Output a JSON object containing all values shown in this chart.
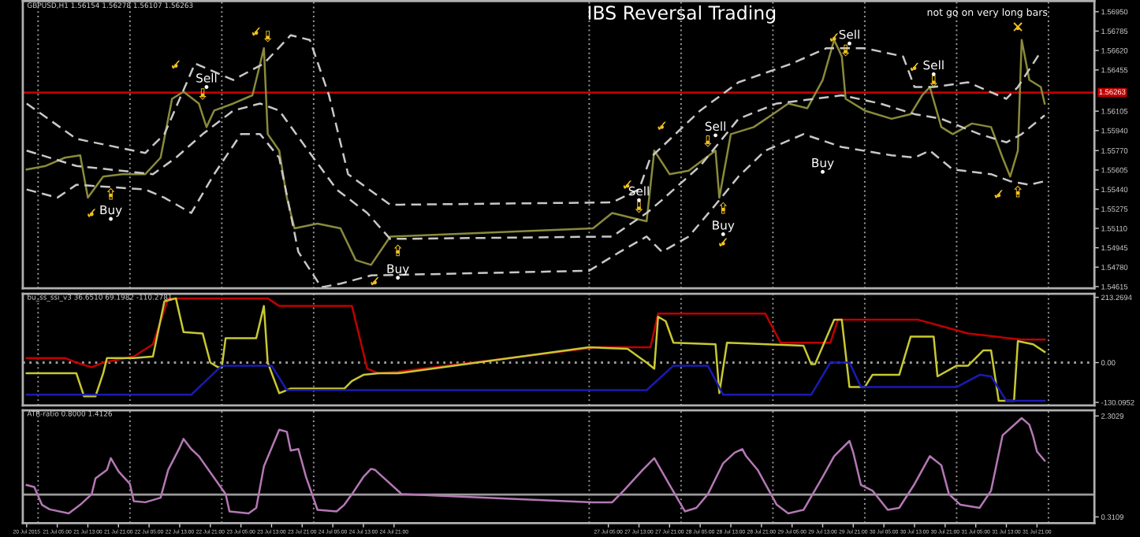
{
  "chart_data": [
    {
      "type": "line",
      "title": "IBS Reversal Trading",
      "subtitle": "GBPUSD,H1 1.56154 1.56278 1.56107 1.56263",
      "tick_labels": "y",
      "xlim": [
        "2015-07-20T20:00",
        "2015-08-01T12:00"
      ],
      "ylim": [
        1.546,
        1.5704
      ],
      "yticks": [
        {
          "value": 1.5695,
          "label": "1.56950"
        },
        1.56785,
        {
          "value": 1.5662,
          "label": "1.56620"
        },
        1.56455,
        1.56105,
        {
          "value": 1.5594,
          "label": "1.55940"
        },
        {
          "value": 1.5577,
          "label": "1.55770"
        },
        1.55605,
        {
          "value": 1.5544,
          "label": "1.55440"
        },
        1.55275,
        {
          "value": 1.5511,
          "label": "1.55110"
        },
        1.54945,
        {
          "value": 1.5478,
          "label": "1.54780"
        },
        1.54615
      ],
      "series": [
        {
          "color": "#8a8a3c",
          "line_style": "solid",
          "x": [
            "2015-07-20T21:00",
            "2015-07-21T02:00",
            "2015-07-21T07:00",
            "2015-07-21T11:00",
            "2015-07-21T13:00",
            "2015-07-21T17:00",
            "2015-07-21T22:00",
            "2015-07-22T04:00",
            "2015-07-22T08:00",
            "2015-07-22T11:00",
            "2015-07-22T14:00",
            "2015-07-22T18:00",
            "2015-07-22T20:00",
            "2015-07-22T22:00",
            "2015-07-23T03:00",
            "2015-07-23T08:00",
            "2015-07-23T11:00",
            "2015-07-23T12:00",
            "2015-07-23T15:00",
            "2015-07-23T17:00",
            "2015-07-23T19:00",
            "2015-07-24T01:00",
            "2015-07-24T07:00",
            "2015-07-24T11:00",
            "2015-07-24T15:00",
            "2015-07-24T20:00",
            "2015-07-27T01:00",
            "2015-07-27T06:00",
            "2015-07-27T11:00",
            "2015-07-27T15:00",
            "2015-07-27T17:00",
            "2015-07-27T21:00",
            "2015-07-28T02:00",
            "2015-07-28T09:00",
            "2015-07-28T10:00",
            "2015-07-28T13:00",
            "2015-07-28T19:00",
            "2015-07-29T00:00",
            "2015-07-29T04:00",
            "2015-07-29T09:00",
            "2015-07-29T13:00",
            "2015-07-29T16:00",
            "2015-07-29T18:00",
            "2015-07-29T19:00",
            "2015-07-30T00:00",
            "2015-07-30T07:00",
            "2015-07-30T12:00",
            "2015-07-30T15:00",
            "2015-07-30T17:00",
            "2015-07-30T20:00",
            "2015-07-30T23:00",
            "2015-07-31T04:00",
            "2015-07-31T09:00",
            "2015-07-31T12:00",
            "2015-07-31T14:00",
            "2015-07-31T16:00",
            "2015-07-31T17:00",
            "2015-07-31T19:00",
            "2015-07-31T22:00",
            "2015-07-31T23:00"
          ],
          "values": [
            1.5561,
            1.5564,
            1.5571,
            1.5573,
            1.5537,
            1.5555,
            1.5557,
            1.5557,
            1.5571,
            1.5621,
            1.5627,
            1.5617,
            1.5597,
            1.5611,
            1.5617,
            1.5624,
            1.5664,
            1.5591,
            1.5577,
            1.5537,
            1.5511,
            1.5515,
            1.5511,
            1.5484,
            1.548,
            1.5504,
            1.5511,
            1.5524,
            1.552,
            1.5517,
            1.5577,
            1.5557,
            1.556,
            1.5577,
            1.5537,
            1.5591,
            1.5597,
            1.5608,
            1.5617,
            1.5613,
            1.5637,
            1.5671,
            1.5657,
            1.5621,
            1.5611,
            1.5604,
            1.5608,
            1.5624,
            1.5631,
            1.5597,
            1.5591,
            1.56,
            1.5597,
            1.5571,
            1.5555,
            1.5577,
            1.5671,
            1.5637,
            1.5631,
            1.5617
          ]
        },
        {
          "color": "#c8c8c8",
          "line_style": "dashed",
          "x": [
            "2015-07-20T21:00",
            "2015-07-21T10:00",
            "2015-07-22T04:00",
            "2015-07-22T09:00",
            "2015-07-22T17:00",
            "2015-07-23T03:00",
            "2015-07-23T11:00",
            "2015-07-23T18:00",
            "2015-07-23T23:00",
            "2015-07-24T04:00",
            "2015-07-24T09:00",
            "2015-07-24T20:00",
            "2015-07-27T06:00",
            "2015-07-27T13:00",
            "2015-07-27T16:00",
            "2015-07-28T05:00",
            "2015-07-28T15:00",
            "2015-07-29T05:00",
            "2015-07-29T14:00",
            "2015-07-30T00:00",
            "2015-07-30T10:00",
            "2015-07-30T13:00",
            "2015-07-30T18:00",
            "2015-07-31T03:00",
            "2015-07-31T13:00",
            "2015-07-31T16:00",
            "2015-07-31T22:00"
          ],
          "values": [
            1.5617,
            1.5587,
            1.5575,
            1.5591,
            1.5651,
            1.5637,
            1.5651,
            1.5675,
            1.5671,
            1.5624,
            1.5557,
            1.5531,
            1.5533,
            1.5544,
            1.5571,
            1.5611,
            1.5635,
            1.5651,
            1.5664,
            1.5664,
            1.5657,
            1.5631,
            1.5631,
            1.5635,
            1.5621,
            1.5631,
            1.5661
          ]
        },
        {
          "color": "#c8c8c8",
          "line_style": "dashed",
          "x": [
            "2015-07-20T21:00",
            "2015-07-21T10:00",
            "2015-07-22T06:00",
            "2015-07-22T12:00",
            "2015-07-22T19:00",
            "2015-07-23T03:00",
            "2015-07-23T10:00",
            "2015-07-23T15:00",
            "2015-07-23T21:00",
            "2015-07-24T06:00",
            "2015-07-24T14:00",
            "2015-07-24T20:00",
            "2015-07-27T06:00",
            "2015-07-27T15:00",
            "2015-07-27T19:00",
            "2015-07-28T05:00",
            "2015-07-28T15:00",
            "2015-07-29T01:00",
            "2015-07-29T11:00",
            "2015-07-29T18:00",
            "2015-07-30T04:00",
            "2015-07-30T13:00",
            "2015-07-30T20:00",
            "2015-07-31T06:00",
            "2015-07-31T13:00",
            "2015-07-31T17:00",
            "2015-07-31T23:00"
          ],
          "values": [
            1.5577,
            1.5564,
            1.5557,
            1.5571,
            1.5591,
            1.5611,
            1.5617,
            1.5611,
            1.5584,
            1.5544,
            1.5524,
            1.5502,
            1.5504,
            1.5524,
            1.5535,
            1.5564,
            1.5604,
            1.5617,
            1.5621,
            1.5624,
            1.5617,
            1.5608,
            1.5604,
            1.5591,
            1.5584,
            1.5591,
            1.5607
          ]
        },
        {
          "color": "#c8c8c8",
          "line_style": "dashed",
          "x": [
            "2015-07-20T21:00",
            "2015-07-21T05:00",
            "2015-07-21T10:00",
            "2015-07-22T04:00",
            "2015-07-22T09:00",
            "2015-07-22T16:00",
            "2015-07-22T22:00",
            "2015-07-23T05:00",
            "2015-07-23T10:00",
            "2015-07-23T15:00",
            "2015-07-23T20:00",
            "2015-07-24T02:00",
            "2015-07-24T07:00",
            "2015-07-24T15:00",
            "2015-07-27T00:00",
            "2015-07-27T08:00",
            "2015-07-27T15:00",
            "2015-07-27T19:00",
            "2015-07-28T02:00",
            "2015-07-28T09:00",
            "2015-07-28T15:00",
            "2015-07-28T22:00",
            "2015-07-29T08:00",
            "2015-07-29T18:00",
            "2015-07-30T07:00",
            "2015-07-30T13:00",
            "2015-07-30T17:00",
            "2015-07-30T23:00",
            "2015-07-31T09:00",
            "2015-07-31T14:00",
            "2015-07-31T19:00",
            "2015-07-31T23:00"
          ],
          "values": [
            1.5544,
            1.5537,
            1.5548,
            1.5544,
            1.5537,
            1.5524,
            1.5557,
            1.5591,
            1.5591,
            1.5571,
            1.5491,
            1.5461,
            1.5464,
            1.5471,
            1.5475,
            1.5491,
            1.5504,
            1.5491,
            1.5504,
            1.5531,
            1.5555,
            1.5577,
            1.5591,
            1.558,
            1.5573,
            1.5571,
            1.5577,
            1.5561,
            1.5557,
            1.5551,
            1.5548,
            1.5551
          ]
        },
        {
          "type": "scatter",
          "marker": "circle",
          "color": "#ffffff",
          "x": [
            "2015-07-21T19:00",
            "2015-07-24T22:00",
            "2015-07-28T11:00",
            "2015-07-29T13:00"
          ],
          "values": [
            1.5519,
            1.5469,
            1.5506,
            1.5559
          ],
          "value_labels": [
            "Buy",
            "Buy",
            "Buy",
            "Buy"
          ]
        },
        {
          "type": "scatter",
          "marker": "circle",
          "color": "#ffffff",
          "x": [
            "2015-07-22T20:00",
            "2015-07-27T13:00",
            "2015-07-28T09:00",
            "2015-07-29T20:00",
            "2015-07-30T18:00"
          ],
          "values": [
            1.5631,
            1.5535,
            1.559,
            1.5668,
            1.5642
          ],
          "value_labels": [
            "Sell",
            "Sell",
            "Sell",
            "Sell",
            "Sell"
          ]
        },
        {
          "type": "scatter",
          "marker": "circle",
          "color": "#f0c020",
          "x": [
            "2015-07-21T19:00",
            "2015-07-24T22:00",
            "2015-07-28T11:00",
            "2015-07-31T16:00"
          ],
          "values": [
            1.5539,
            1.5491,
            1.5527,
            1.5541
          ],
          "value_labels": [
            "⇧",
            "⇧",
            "⇧",
            "⇧"
          ]
        },
        {
          "type": "scatter",
          "marker": "circle",
          "color": "#f0c020",
          "x": [
            "2015-07-22T19:00",
            "2015-07-23T12:00",
            "2015-07-27T13:00",
            "2015-07-28T07:00",
            "2015-07-29T19:00",
            "2015-07-30T18:00"
          ],
          "values": [
            1.5624,
            1.5673,
            1.5528,
            1.5584,
            1.5661,
            1.5635
          ],
          "value_labels": [
            "⇩",
            "⇩",
            "⇩",
            "⇩",
            "⇩",
            "⇩"
          ]
        },
        {
          "type": "scatter",
          "marker": "circle",
          "color": "#f0c020",
          "x": [
            "2015-07-21T14:00",
            "2015-07-22T12:00",
            "2015-07-23T09:00",
            "2015-07-24T16:00",
            "2015-07-27T10:00",
            "2015-07-27T19:00",
            "2015-07-28T11:00",
            "2015-07-29T16:00",
            "2015-07-30T13:00",
            "2015-07-31T11:00"
          ],
          "values": [
            1.5523,
            1.5649,
            1.5677,
            1.5465,
            1.5547,
            1.5597,
            1.5498,
            1.5672,
            1.5647,
            1.5539
          ],
          "value_labels": [
            "✓",
            "✓",
            "✓",
            "✓",
            "✓",
            "✓",
            "✓",
            "✓",
            "✓",
            "✓"
          ]
        },
        {
          "type": "scatter",
          "marker": "circle",
          "color": "#f0c020",
          "x": [
            "2015-07-31T16:00"
          ],
          "values": [
            1.5681
          ],
          "value_labels": [
            "✕"
          ]
        }
      ],
      "ref_lines": [
        {
          "axis": "y",
          "value": 1.56263,
          "label": "1.56263",
          "color": "#c00000",
          "line_style": "solid"
        },
        {
          "axis": "x",
          "value": "2015-07-21T00:00",
          "color": "#9a9a9a",
          "line_style": "dotted"
        },
        {
          "axis": "x",
          "value": "2015-07-22T00:00",
          "color": "#9a9a9a",
          "line_style": "dotted"
        },
        {
          "axis": "x",
          "value": "2015-07-23T00:00",
          "color": "#9a9a9a",
          "line_style": "dotted"
        },
        {
          "axis": "x",
          "value": "2015-07-24T00:00",
          "color": "#9a9a9a",
          "line_style": "dotted"
        },
        {
          "axis": "x",
          "value": "2015-07-27T00:00",
          "color": "#9a9a9a",
          "line_style": "dotted"
        },
        {
          "axis": "x",
          "value": "2015-07-28T00:00",
          "color": "#9a9a9a",
          "line_style": "dotted"
        },
        {
          "axis": "x",
          "value": "2015-07-29T00:00",
          "color": "#9a9a9a",
          "line_style": "dotted"
        },
        {
          "axis": "x",
          "value": "2015-07-30T00:00",
          "color": "#9a9a9a",
          "line_style": "dotted"
        },
        {
          "axis": "x",
          "value": "2015-07-31T00:00",
          "color": "#9a9a9a",
          "line_style": "dotted"
        },
        {
          "axis": "x",
          "value": "2015-08-01T00:00",
          "color": "#9a9a9a",
          "line_style": "dotted"
        }
      ],
      "annotations": [
        "not go on very long bars"
      ]
    },
    {
      "type": "line",
      "subtitle": "bu_ss_ssi_v3 36.6510 69.1982 -110.2781",
      "tick_labels": "y",
      "xlim": [
        "2015-07-20T20:00",
        "2015-08-01T12:00"
      ],
      "ylim": [
        -140,
        225
      ],
      "yticks": [
        213.2694,
        {
          "value": 0,
          "label": "0.00"
        },
        -130.0952
      ],
      "series": [
        {
          "color": "#c00000",
          "line_style": "solid",
          "x": [
            "2015-07-20T21:00",
            "2015-07-21T07:00",
            "2015-07-21T10:00",
            "2015-07-21T14:00",
            "2015-07-21T17:00",
            "2015-07-22T01:00",
            "2015-07-22T06:00",
            "2015-07-22T10:00",
            "2015-07-23T12:00",
            "2015-07-23T15:00",
            "2015-07-24T10:00",
            "2015-07-24T14:00",
            "2015-07-24T17:00",
            "2015-07-24T22:00",
            "2015-07-27T02:00",
            "2015-07-27T16:00",
            "2015-07-27T18:00",
            "2015-07-28T22:00",
            "2015-07-29T02:00",
            "2015-07-29T15:00",
            "2015-07-29T17:00",
            "2015-07-30T14:00",
            "2015-07-31T03:00",
            "2015-07-31T17:00",
            "2015-07-31T23:00"
          ],
          "values": [
            15,
            15,
            0,
            -15,
            0,
            20,
            60,
            210,
            210,
            185,
            185,
            -20,
            -35,
            -30,
            50,
            50,
            160,
            160,
            65,
            65,
            140,
            140,
            95,
            75,
            75
          ]
        },
        {
          "color": "#c8c832",
          "line_style": "solid",
          "x": [
            "2015-07-20T21:00",
            "2015-07-21T10:00",
            "2015-07-21T12:00",
            "2015-07-21T15:00",
            "2015-07-21T17:00",
            "2015-07-21T18:00",
            "2015-07-22T01:00",
            "2015-07-22T06:00",
            "2015-07-22T09:00",
            "2015-07-22T12:00",
            "2015-07-22T14:00",
            "2015-07-22T19:00",
            "2015-07-22T21:00",
            "2015-07-22T23:00",
            "2015-07-23T00:00",
            "2015-07-23T01:00",
            "2015-07-23T09:00",
            "2015-07-23T11:00",
            "2015-07-23T12:00",
            "2015-07-23T15:00",
            "2015-07-23T18:00",
            "2015-07-24T08:00",
            "2015-07-24T10:00",
            "2015-07-24T13:00",
            "2015-07-24T17:00",
            "2015-07-24T22:00",
            "2015-07-27T00:00",
            "2015-07-27T10:00",
            "2015-07-27T15:00",
            "2015-07-27T17:00",
            "2015-07-27T18:00",
            "2015-07-27T20:00",
            "2015-07-27T22:00",
            "2015-07-28T09:00",
            "2015-07-28T10:00",
            "2015-07-28T12:00",
            "2015-07-29T08:00",
            "2015-07-29T10:00",
            "2015-07-29T11:00",
            "2015-07-29T16:00",
            "2015-07-29T18:00",
            "2015-07-29T20:00",
            "2015-07-30T00:00",
            "2015-07-30T02:00",
            "2015-07-30T09:00",
            "2015-07-30T12:00",
            "2015-07-30T18:00",
            "2015-07-30T19:00",
            "2015-07-31T00:00",
            "2015-07-31T03:00",
            "2015-07-31T07:00",
            "2015-07-31T09:00",
            "2015-07-31T11:00",
            "2015-07-31T15:00",
            "2015-07-31T16:00",
            "2015-07-31T20:00",
            "2015-07-31T23:00"
          ],
          "values": [
            -35,
            -35,
            -110,
            -110,
            -35,
            15,
            15,
            20,
            200,
            210,
            100,
            95,
            0,
            -15,
            -15,
            80,
            80,
            185,
            0,
            -100,
            -85,
            -85,
            -60,
            -40,
            -35,
            -35,
            50,
            45,
            0,
            -20,
            150,
            135,
            65,
            60,
            -100,
            65,
            55,
            -5,
            -5,
            140,
            140,
            -80,
            -80,
            -40,
            -40,
            85,
            85,
            -45,
            -10,
            -10,
            40,
            40,
            -125,
            -125,
            70,
            60,
            35
          ]
        },
        {
          "color": "#1a1ab4",
          "line_style": "solid",
          "x": [
            "2015-07-20T21:00",
            "2015-07-22T16:00",
            "2015-07-23T00:00",
            "2015-07-23T13:00",
            "2015-07-23T17:00",
            "2015-07-27T15:00",
            "2015-07-27T22:00",
            "2015-07-28T07:00",
            "2015-07-28T11:00",
            "2015-07-29T10:00",
            "2015-07-29T15:00",
            "2015-07-29T20:00",
            "2015-07-29T23:00",
            "2015-07-31T00:00",
            "2015-07-31T06:00",
            "2015-07-31T09:00",
            "2015-07-31T13:00",
            "2015-07-31T23:00"
          ],
          "values": [
            -105,
            -105,
            -10,
            -10,
            -90,
            -90,
            -10,
            -10,
            -105,
            -105,
            0,
            0,
            -80,
            -80,
            -40,
            -45,
            -125,
            -125
          ]
        }
      ],
      "ref_lines": [
        {
          "axis": "y",
          "value": 0,
          "color": "#9a9a9a",
          "line_style": "dotted"
        },
        {
          "axis": "x",
          "value": "2015-07-21T00:00",
          "color": "#9a9a9a",
          "line_style": "dotted"
        },
        {
          "axis": "x",
          "value": "2015-07-22T00:00",
          "color": "#9a9a9a",
          "line_style": "dotted"
        },
        {
          "axis": "x",
          "value": "2015-07-23T00:00",
          "color": "#9a9a9a",
          "line_style": "dotted"
        },
        {
          "axis": "x",
          "value": "2015-07-24T00:00",
          "color": "#9a9a9a",
          "line_style": "dotted"
        },
        {
          "axis": "x",
          "value": "2015-07-27T00:00",
          "color": "#9a9a9a",
          "line_style": "dotted"
        },
        {
          "axis": "x",
          "value": "2015-07-28T00:00",
          "color": "#9a9a9a",
          "line_style": "dotted"
        },
        {
          "axis": "x",
          "value": "2015-07-29T00:00",
          "color": "#9a9a9a",
          "line_style": "dotted"
        },
        {
          "axis": "x",
          "value": "2015-07-30T00:00",
          "color": "#9a9a9a",
          "line_style": "dotted"
        },
        {
          "axis": "x",
          "value": "2015-07-31T00:00",
          "color": "#9a9a9a",
          "line_style": "dotted"
        },
        {
          "axis": "x",
          "value": "2015-08-01T00:00",
          "color": "#9a9a9a",
          "line_style": "dotted"
        }
      ]
    },
    {
      "type": "line",
      "subtitle": "ATR-ratio 0.8000 1.4126",
      "xlim": [
        "2015-07-20T20:00",
        "2015-08-01T12:00"
      ],
      "ylim": [
        0.19,
        2.415
      ],
      "yticks": [
        2.3029,
        0.3109
      ],
      "xticks": [
        {
          "value": "2015-07-20T21:00",
          "label": "20 Jul 2015"
        },
        {
          "value": "2015-07-21T05:00",
          "label": "21 Jul 05:00"
        },
        {
          "value": "2015-07-21T13:00",
          "label": "21 Jul 13:00"
        },
        {
          "value": "2015-07-21T21:00",
          "label": "21 Jul 21:00"
        },
        {
          "value": "2015-07-22T05:00",
          "label": "22 Jul 05:00"
        },
        {
          "value": "2015-07-22T13:00",
          "label": "22 Jul 13:00"
        },
        {
          "value": "2015-07-22T21:00",
          "label": "22 Jul 21:00"
        },
        {
          "value": "2015-07-23T05:00",
          "label": "23 Jul 05:00"
        },
        {
          "value": "2015-07-23T13:00",
          "label": "23 Jul 13:00"
        },
        {
          "value": "2015-07-23T21:00",
          "label": "23 Jul 21:00"
        },
        {
          "value": "2015-07-24T05:00",
          "label": "24 Jul 05:00"
        },
        {
          "value": "2015-07-24T13:00",
          "label": "24 Jul 13:00"
        },
        {
          "value": "2015-07-24T21:00",
          "label": "24 Jul 21:00"
        },
        {
          "value": "2015-07-27T05:00",
          "label": "27 Jul 05:00"
        },
        {
          "value": "2015-07-27T13:00",
          "label": "27 Jul 13:00"
        },
        {
          "value": "2015-07-27T21:00",
          "label": "27 Jul 21:00"
        },
        {
          "value": "2015-07-28T05:00",
          "label": "28 Jul 05:00"
        },
        {
          "value": "2015-07-28T13:00",
          "label": "28 Jul 13:00"
        },
        {
          "value": "2015-07-28T21:00",
          "label": "28 Jul 21:00"
        },
        {
          "value": "2015-07-29T05:00",
          "label": "29 Jul 05:00"
        },
        {
          "value": "2015-07-29T13:00",
          "label": "29 Jul 13:00"
        },
        {
          "value": "2015-07-29T21:00",
          "label": "29 Jul 21:00"
        },
        {
          "value": "2015-07-30T05:00",
          "label": "30 Jul 05:00"
        },
        {
          "value": "2015-07-30T13:00",
          "label": "30 Jul 13:00"
        },
        {
          "value": "2015-07-30T21:00",
          "label": "30 Jul 21:00"
        },
        {
          "value": "2015-07-31T05:00",
          "label": "31 Jul 05:00"
        },
        {
          "value": "2015-07-31T13:00",
          "label": "31 Jul 13:00"
        },
        {
          "value": "2015-07-31T21:00",
          "label": "31 Jul 21:00"
        }
      ],
      "series": [
        {
          "color": "#b478b4",
          "line_style": "solid",
          "x": [
            "2015-07-20T21:00",
            "2015-07-20T23:00",
            "2015-07-21T01:00",
            "2015-07-21T03:00",
            "2015-07-21T08:00",
            "2015-07-21T11:00",
            "2015-07-21T14:00",
            "2015-07-21T15:00",
            "2015-07-21T18:00",
            "2015-07-21T19:00",
            "2015-07-21T21:00",
            "2015-07-22T00:00",
            "2015-07-22T01:00",
            "2015-07-22T04:00",
            "2015-07-22T08:00",
            "2015-07-22T10:00",
            "2015-07-22T13:00",
            "2015-07-22T14:00",
            "2015-07-22T16:00",
            "2015-07-22T18:00",
            "2015-07-23T01:00",
            "2015-07-23T02:00",
            "2015-07-23T07:00",
            "2015-07-23T09:00",
            "2015-07-23T11:00",
            "2015-07-23T15:00",
            "2015-07-23T17:00",
            "2015-07-23T18:00",
            "2015-07-23T20:00",
            "2015-07-23T22:00",
            "2015-07-24T01:00",
            "2015-07-24T06:00",
            "2015-07-24T08:00",
            "2015-07-24T10:00",
            "2015-07-24T13:00",
            "2015-07-24T15:00",
            "2015-07-24T16:00",
            "2015-07-24T17:00",
            "2015-07-24T23:00",
            "2015-07-27T01:00",
            "2015-07-27T06:00",
            "2015-07-27T09:00",
            "2015-07-27T14:00",
            "2015-07-27T17:00",
            "2015-07-27T21:00",
            "2015-07-28T01:00",
            "2015-07-28T04:00",
            "2015-07-28T07:00",
            "2015-07-28T11:00",
            "2015-07-28T14:00",
            "2015-07-28T16:00",
            "2015-07-28T17:00",
            "2015-07-28T20:00",
            "2015-07-29T01:00",
            "2015-07-29T04:00",
            "2015-07-29T08:00",
            "2015-07-29T13:00",
            "2015-07-29T16:00",
            "2015-07-29T20:00",
            "2015-07-29T21:00",
            "2015-07-29T23:00",
            "2015-07-30T02:00",
            "2015-07-30T06:00",
            "2015-07-30T09:00",
            "2015-07-30T13:00",
            "2015-07-30T17:00",
            "2015-07-30T20:00",
            "2015-07-30T22:00",
            "2015-07-31T01:00",
            "2015-07-31T06:00",
            "2015-07-31T09:00",
            "2015-07-31T12:00",
            "2015-07-31T17:00",
            "2015-07-31T19:00",
            "2015-07-31T20:00",
            "2015-07-31T21:00",
            "2015-07-31T23:00"
          ],
          "values": [
            0.94,
            0.9,
            0.55,
            0.46,
            0.38,
            0.55,
            0.76,
            1.07,
            1.24,
            1.47,
            1.21,
            0.96,
            0.62,
            0.6,
            0.69,
            1.24,
            1.68,
            1.85,
            1.65,
            1.51,
            0.76,
            0.42,
            0.38,
            0.49,
            1.31,
            2.03,
            1.99,
            1.62,
            1.65,
            1.1,
            0.45,
            0.42,
            0.55,
            0.76,
            1.1,
            1.26,
            1.24,
            1.17,
            0.76,
            0.6,
            0.6,
            0.83,
            1.24,
            1.47,
            0.94,
            0.42,
            0.49,
            0.76,
            1.37,
            1.58,
            1.65,
            1.51,
            1.24,
            0.55,
            0.38,
            0.45,
            1.1,
            1.51,
            1.81,
            1.58,
            0.94,
            0.83,
            0.45,
            0.49,
            0.96,
            1.51,
            1.33,
            0.76,
            0.55,
            0.49,
            0.83,
            1.92,
            2.26,
            2.13,
            1.9,
            1.6,
            1.42
          ]
        }
      ],
      "ref_lines": [
        {
          "axis": "y",
          "value": 0.75,
          "color": "#9a9a9a",
          "line_style": "solid"
        },
        {
          "axis": "x",
          "value": "2015-07-21T00:00",
          "color": "#9a9a9a",
          "line_style": "dotted"
        },
        {
          "axis": "x",
          "value": "2015-07-22T00:00",
          "color": "#9a9a9a",
          "line_style": "dotted"
        },
        {
          "axis": "x",
          "value": "2015-07-23T00:00",
          "color": "#9a9a9a",
          "line_style": "dotted"
        },
        {
          "axis": "x",
          "value": "2015-07-24T00:00",
          "color": "#9a9a9a",
          "line_style": "dotted"
        },
        {
          "axis": "x",
          "value": "2015-07-27T00:00",
          "color": "#9a9a9a",
          "line_style": "dotted"
        },
        {
          "axis": "x",
          "value": "2015-07-28T00:00",
          "color": "#9a9a9a",
          "line_style": "dotted"
        },
        {
          "axis": "x",
          "value": "2015-07-29T00:00",
          "color": "#9a9a9a",
          "line_style": "dotted"
        },
        {
          "axis": "x",
          "value": "2015-07-30T00:00",
          "color": "#9a9a9a",
          "line_style": "dotted"
        },
        {
          "axis": "x",
          "value": "2015-07-31T00:00",
          "color": "#9a9a9a",
          "line_style": "dotted"
        },
        {
          "axis": "x",
          "value": "2015-08-01T00:00",
          "color": "#9a9a9a",
          "line_style": "dotted"
        }
      ]
    }
  ]
}
